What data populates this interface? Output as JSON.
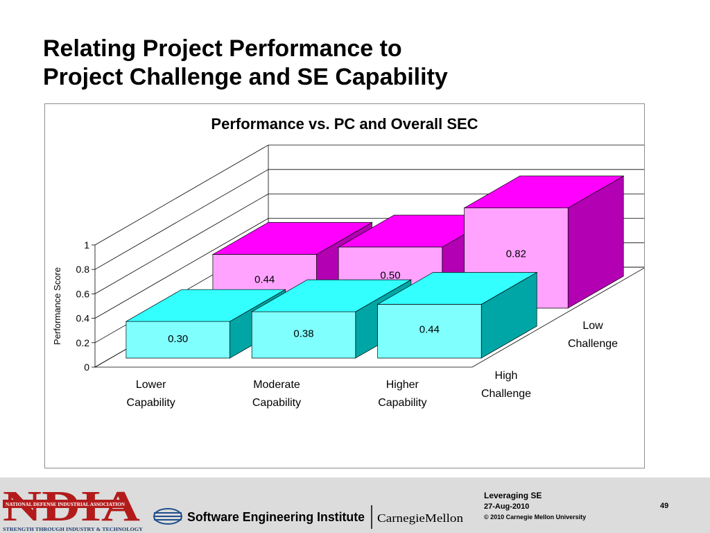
{
  "slide": {
    "title_line1": "Relating Project Performance to",
    "title_line2": "Project Challenge and SE Capability"
  },
  "chart_data": {
    "type": "bar",
    "subtype": "3d-bar",
    "title": "Performance vs. PC and Overall SEC",
    "ylabel": "Performance Score",
    "ylim": [
      0,
      1
    ],
    "yticks": [
      "0",
      "0.2",
      "0.4",
      "0.6",
      "0.8",
      "1"
    ],
    "categories": [
      [
        "Lower",
        "Capability"
      ],
      [
        "Moderate",
        "Capability"
      ],
      [
        "Higher",
        "Capability"
      ]
    ],
    "depth_categories": [
      [
        "High",
        "Challenge"
      ],
      [
        "Low",
        "Challenge"
      ]
    ],
    "series": [
      {
        "name": "High Challenge",
        "values": [
          0.3,
          0.38,
          0.44
        ],
        "labels": [
          "0.30",
          "0.38",
          "0.44"
        ],
        "colors": {
          "front": "#80ffff",
          "top": "#33ffff",
          "side": "#00a6a6"
        }
      },
      {
        "name": "Low Challenge",
        "values": [
          0.44,
          0.5,
          0.82
        ],
        "labels": [
          "0.44",
          "0.50",
          "0.82"
        ],
        "colors": {
          "front": "#ffa3ff",
          "top": "#ff00ff",
          "side": "#b200b2"
        }
      }
    ],
    "grid": true
  },
  "footer": {
    "ndia_logo_text": "NDIA",
    "ndia_org": "NATIONAL DEFENSE INDUSTRIAL ASSOCIATION",
    "ndia_tagline": "STRENGTH THROUGH INDUSTRY & TECHNOLOGY",
    "sei_name": "Software Engineering Institute",
    "cmu_name": "CarnegieMellon",
    "line1": "Leveraging SE",
    "line2": "27-Aug-2010",
    "line3": "© 2010 Carnegie Mellon University",
    "page": "49",
    "colors": {
      "ndia_red": "#b31b1b",
      "sei_blue": "#1f4e8c"
    }
  }
}
